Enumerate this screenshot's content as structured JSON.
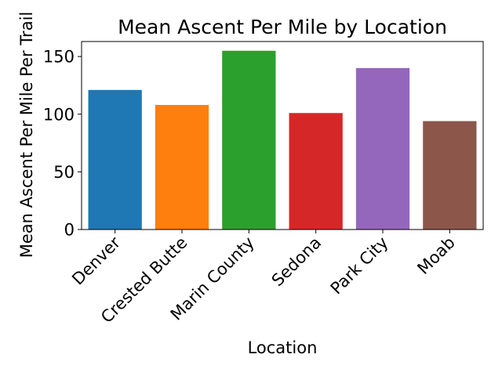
{
  "chart_data": {
    "type": "bar",
    "title": "Mean Ascent Per Mile by Location",
    "xlabel": "Location",
    "ylabel": "Mean Ascent Per Mile Per Trail",
    "categories": [
      "Denver",
      "Crested Butte",
      "Marin County",
      "Sedona",
      "Park City",
      "Moab"
    ],
    "values": [
      121,
      108,
      155,
      101,
      140,
      94
    ],
    "colors": [
      "#1f77b4",
      "#ff7f0e",
      "#2ca02c",
      "#d62728",
      "#9467bd",
      "#8c564b"
    ],
    "ylim": [
      0,
      163
    ],
    "yticks": [
      0,
      50,
      100,
      150
    ],
    "grid": false,
    "legend": "none"
  }
}
